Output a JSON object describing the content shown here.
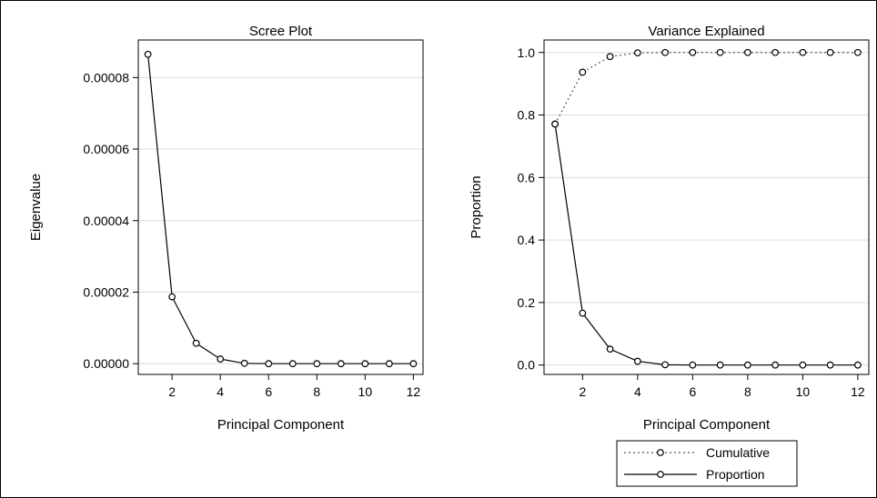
{
  "chart_data": [
    {
      "type": "line",
      "title": "Scree Plot",
      "xlabel": "Principal Component",
      "ylabel": "Eigenvalue",
      "xlim": [
        0.6,
        12.4
      ],
      "ylim": [
        -3e-06,
        9.05e-05
      ],
      "xticks": [
        2,
        4,
        6,
        8,
        10,
        12
      ],
      "xtick_labels": [
        "2",
        "4",
        "6",
        "8",
        "10",
        "12"
      ],
      "yticks": [
        0,
        2e-05,
        4e-05,
        6e-05,
        8e-05
      ],
      "ytick_labels": [
        "0.00000",
        "0.00002",
        "0.00004",
        "0.00006",
        "0.00008"
      ],
      "grid": "horizontal",
      "x": [
        1,
        2,
        3,
        4,
        5,
        6,
        7,
        8,
        9,
        10,
        11,
        12
      ],
      "series": [
        {
          "values": [
            8.65e-05,
            1.87e-05,
            5.7e-06,
            1.3e-06,
            1e-07,
            0,
            0,
            0,
            0,
            0,
            0,
            0
          ],
          "line_style": "solid",
          "marker": "circle"
        }
      ]
    },
    {
      "type": "line",
      "title": "Variance Explained",
      "xlabel": "Principal Component",
      "ylabel": "Proportion",
      "xlim": [
        0.6,
        12.4
      ],
      "ylim": [
        -0.03,
        1.04
      ],
      "xticks": [
        2,
        4,
        6,
        8,
        10,
        12
      ],
      "xtick_labels": [
        "2",
        "4",
        "6",
        "8",
        "10",
        "12"
      ],
      "yticks": [
        0,
        0.2,
        0.4,
        0.6,
        0.8,
        1.0
      ],
      "ytick_labels": [
        "0.0",
        "0.2",
        "0.4",
        "0.6",
        "0.8",
        "1.0"
      ],
      "grid": "horizontal",
      "legend_position": "bottom",
      "x": [
        1,
        2,
        3,
        4,
        5,
        6,
        7,
        8,
        9,
        10,
        11,
        12
      ],
      "series": [
        {
          "name": "Cumulative",
          "values": [
            0.771,
            0.937,
            0.987,
            0.999,
            1.0,
            1.0,
            1.0,
            1.0,
            1.0,
            1.0,
            1.0,
            1.0
          ],
          "line_style": "dotted",
          "marker": "circle"
        },
        {
          "name": "Proportion",
          "values": [
            0.771,
            0.166,
            0.051,
            0.012,
            0.001,
            0.0,
            0.0,
            0.0,
            0.0,
            0.0,
            0.0,
            0.0
          ],
          "line_style": "solid",
          "marker": "circle"
        }
      ]
    }
  ]
}
